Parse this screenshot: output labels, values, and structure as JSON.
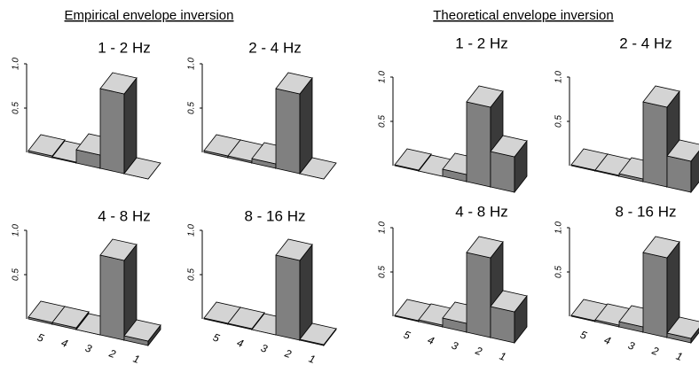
{
  "headings": [
    "Empirical envelope inversion",
    "Theoretical envelope inversion"
  ],
  "chart_data": [
    {
      "type": "bar3d",
      "title": "1 - 2 Hz",
      "values": [
        0.02,
        0.01,
        0.15,
        0.9,
        0
      ],
      "ylim": [
        0,
        1
      ],
      "yticks": [
        0.5,
        {
          "value": 1,
          "label": "1.0"
        }
      ]
    },
    {
      "type": "bar3d",
      "title": "2 - 4 Hz",
      "values": [
        0.02,
        0.02,
        0.05,
        0.9,
        0
      ],
      "ylim": [
        0,
        1
      ],
      "yticks": [
        0.5,
        {
          "value": 1,
          "label": "1.0"
        }
      ]
    },
    {
      "type": "bar3d",
      "title": "4 - 8 Hz",
      "categories": [
        "5",
        "4",
        "3",
        "2",
        "1"
      ],
      "values": [
        0.02,
        0.02,
        0,
        0.9,
        0.05
      ],
      "ylim": [
        0,
        1
      ],
      "yticks": [
        0.5,
        {
          "value": 1,
          "label": "1.0"
        }
      ]
    },
    {
      "type": "bar3d",
      "title": "8 - 16 Hz",
      "categories": [
        "5",
        "4",
        "3",
        "2",
        "1"
      ],
      "values": [
        0.01,
        0.01,
        0,
        0.9,
        0.01
      ],
      "ylim": [
        0,
        1
      ],
      "yticks": [
        0.5,
        {
          "value": 1,
          "label": "1.0"
        }
      ]
    },
    {
      "type": "bar3d",
      "title": "1 - 2 Hz",
      "values": [
        0.01,
        0,
        0.08,
        0.9,
        0.4
      ],
      "ylim": [
        0,
        1
      ],
      "yticks": [
        0.5,
        {
          "value": 1,
          "label": "1.0"
        }
      ]
    },
    {
      "type": "bar3d",
      "title": "2 - 4 Hz",
      "values": [
        0.01,
        0.01,
        0.03,
        0.9,
        0.35
      ],
      "ylim": [
        0,
        1
      ],
      "yticks": [
        0.5,
        {
          "value": 1,
          "label": "1.0"
        }
      ]
    },
    {
      "type": "bar3d",
      "title": "4 - 8 Hz",
      "categories": [
        "5",
        "4",
        "3",
        "2",
        "1"
      ],
      "values": [
        0.01,
        0.02,
        0.1,
        0.9,
        0.35
      ],
      "ylim": [
        0,
        1
      ],
      "yticks": [
        0.5,
        {
          "value": 1,
          "label": "1.0"
        }
      ]
    },
    {
      "type": "bar3d",
      "title": "8 - 16 Hz",
      "categories": [
        "5",
        "4",
        "3",
        "2",
        "1"
      ],
      "values": [
        0.01,
        0.02,
        0.06,
        0.9,
        0.05
      ],
      "ylim": [
        0,
        1
      ],
      "yticks": [
        0.5,
        {
          "value": 1,
          "label": "1.0"
        }
      ]
    }
  ]
}
